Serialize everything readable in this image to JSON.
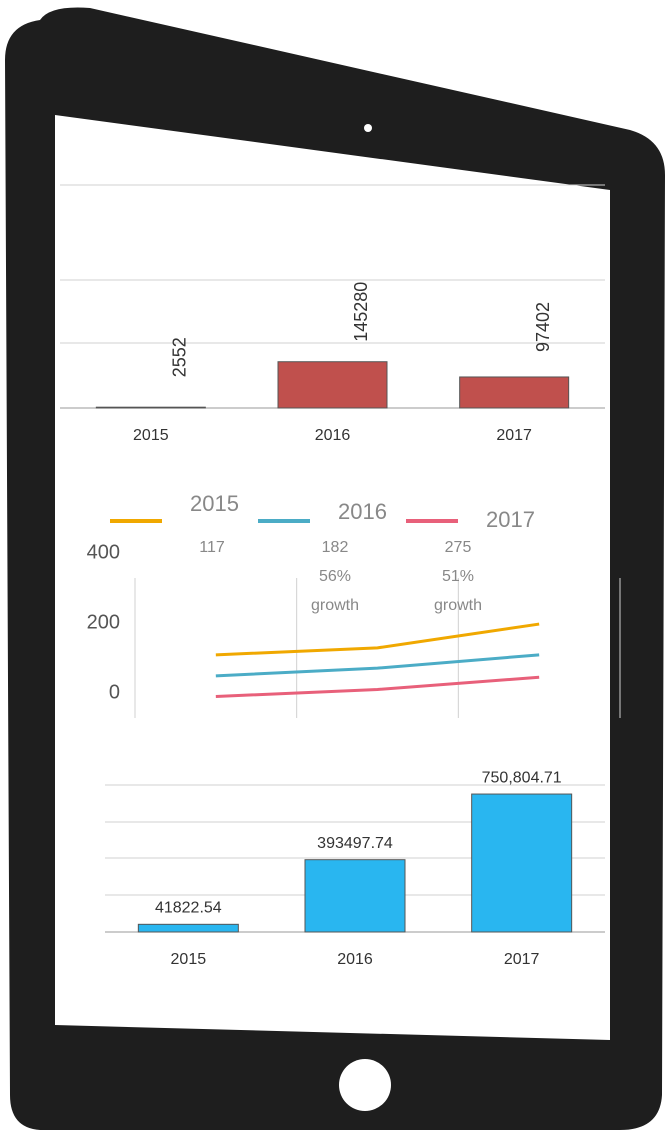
{
  "chart_data": [
    {
      "type": "bar",
      "categories": [
        "2015",
        "2016",
        "2017"
      ],
      "values": [
        2552,
        145280,
        97402
      ],
      "color": "#c0504d",
      "ylim": [
        0,
        700000
      ]
    },
    {
      "type": "line",
      "categories": [
        null,
        null,
        null
      ],
      "series": [
        {
          "name": "2015",
          "color": "#f0a800",
          "values": [
            109,
            129,
            197
          ]
        },
        {
          "name": "2016",
          "color": "#4bacc6",
          "values": [
            49,
            71,
            109
          ]
        },
        {
          "name": "2017",
          "color": "#e8607a",
          "values": [
            -10,
            10,
            45
          ]
        }
      ],
      "annotations": [
        [
          "117"
        ],
        [
          "182",
          "56%",
          "growth"
        ],
        [
          "275",
          "51%",
          "growth"
        ]
      ],
      "ylim": [
        0,
        400
      ],
      "yticks": [
        0,
        200,
        400
      ]
    },
    {
      "type": "bar",
      "categories": [
        "2015",
        "2016",
        "2017"
      ],
      "values": [
        41822.54,
        393497.74,
        750804.71
      ],
      "value_labels": [
        "41822.54",
        "393497.74",
        "750,804.71"
      ],
      "color": "#29b6f0",
      "ylim": [
        0,
        800000
      ]
    }
  ]
}
